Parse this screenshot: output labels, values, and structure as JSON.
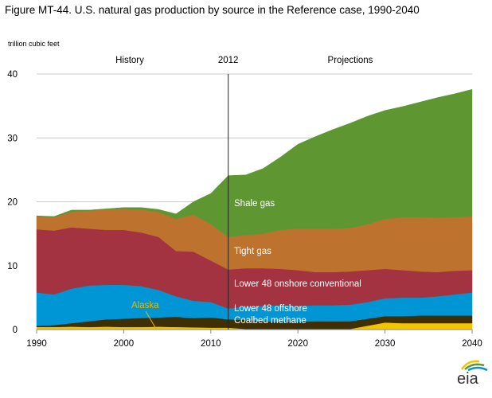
{
  "chart_data": {
    "type": "area",
    "stacked": true,
    "title": "Figure MT-44. U.S. natural gas production by source in the Reference case, 1990-2040",
    "ylabel": "trillion cubic feet",
    "xlabel": "",
    "xlim": [
      1990,
      2040
    ],
    "ylim": [
      0,
      40
    ],
    "xticks": [
      "1990",
      "2000",
      "2010",
      "2020",
      "2030",
      "2040"
    ],
    "yticks": [
      "0",
      "10",
      "20",
      "30",
      "40"
    ],
    "grid": true,
    "divider": {
      "year": 2012,
      "label": "2012",
      "left_label": "History",
      "right_label": "Projections"
    },
    "x": [
      1990,
      1992,
      1994,
      1996,
      1998,
      2000,
      2002,
      2004,
      2006,
      2008,
      2010,
      2012,
      2014,
      2016,
      2018,
      2020,
      2022,
      2024,
      2026,
      2028,
      2030,
      2032,
      2034,
      2036,
      2038,
      2040
    ],
    "series": [
      {
        "name": "Alaska",
        "color": "#f5c400",
        "label_color": "#e8b800",
        "values": [
          0.4,
          0.4,
          0.45,
          0.4,
          0.45,
          0.4,
          0.4,
          0.45,
          0.4,
          0.35,
          0.3,
          0.3,
          0.1,
          0.1,
          0.1,
          0.1,
          0.1,
          0.1,
          0.1,
          0.6,
          1.1,
          1.0,
          1.0,
          1.0,
          1.0,
          1.0
        ]
      },
      {
        "name": "Coalbed methane",
        "color": "#3e2f07",
        "label_color": "#ffffff",
        "values": [
          0.2,
          0.3,
          0.55,
          0.9,
          1.15,
          1.3,
          1.4,
          1.45,
          1.6,
          1.45,
          1.6,
          1.3,
          1.4,
          1.2,
          1.1,
          1.1,
          1.2,
          1.2,
          1.2,
          1.1,
          1.0,
          1.1,
          1.2,
          1.2,
          1.2,
          1.2
        ]
      },
      {
        "name": "Lower 48 offshore",
        "color": "#0096d6",
        "label_color": "#ffffff",
        "values": [
          5.2,
          4.8,
          5.4,
          5.6,
          5.4,
          5.3,
          5.0,
          4.3,
          3.2,
          2.7,
          2.4,
          1.7,
          2.1,
          2.4,
          2.6,
          2.5,
          2.5,
          2.5,
          2.6,
          2.6,
          2.8,
          2.9,
          2.8,
          3.0,
          3.3,
          3.6
        ]
      },
      {
        "name": "Lower 48 onshore conventional",
        "color": "#a33340",
        "label_color": "#ffffff",
        "values": [
          9.9,
          10.0,
          9.6,
          8.9,
          8.6,
          8.6,
          8.4,
          8.3,
          7.1,
          7.7,
          6.5,
          6.1,
          6.0,
          5.9,
          5.7,
          5.6,
          5.2,
          5.2,
          5.2,
          5.0,
          4.6,
          4.3,
          4.1,
          3.8,
          3.7,
          3.5
        ]
      },
      {
        "name": "Tight gas",
        "color": "#bd732d",
        "label_color": "#ffffff",
        "values": [
          2.0,
          2.1,
          2.4,
          2.8,
          3.2,
          3.3,
          3.6,
          3.9,
          5.0,
          5.8,
          5.7,
          5.1,
          5.2,
          5.4,
          6.1,
          6.5,
          6.8,
          6.8,
          6.8,
          7.2,
          7.8,
          8.3,
          8.5,
          8.5,
          8.4,
          8.4
        ]
      },
      {
        "name": "Shale gas",
        "color": "#5e9732",
        "label_color": "#ffffff",
        "values": [
          0.1,
          0.1,
          0.3,
          0.1,
          0.1,
          0.2,
          0.3,
          0.4,
          0.8,
          2.0,
          4.8,
          9.6,
          9.4,
          10.2,
          11.4,
          13.2,
          14.4,
          15.5,
          16.4,
          16.9,
          17.0,
          17.3,
          18.0,
          18.8,
          19.3,
          19.9
        ]
      }
    ]
  },
  "logo": {
    "text": "eia"
  }
}
